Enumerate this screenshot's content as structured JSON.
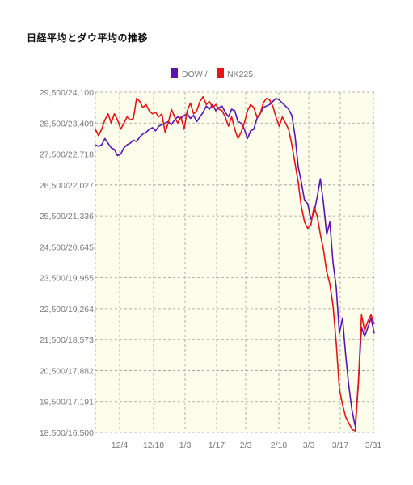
{
  "title": "日経平均とダウ平均の推移",
  "chart_data": {
    "type": "line",
    "legend": [
      "DOW /",
      "NK225"
    ],
    "legend_position": "top-center",
    "grid": true,
    "colors": {
      "DOW": "#5a14b4",
      "NK225": "#e81414",
      "plot_bg": "#fdfdeb",
      "grid": "#9a9a9a"
    },
    "ylim": [
      18500,
      29500
    ],
    "y_ticks": [
      "29,500/24,100",
      "28,500/23,409",
      "27,500/22,718",
      "26,500/22,027",
      "25,500/21,336",
      "24,500/20,645",
      "23,500/19,955",
      "22,500/19,264",
      "21,500/18,573",
      "20,500/17,882",
      "19,500/17,191",
      "18,500/16,500"
    ],
    "x_ticks": [
      "12/4",
      "12/18",
      "1/3",
      "1/17",
      "2/3",
      "2/18",
      "3/3",
      "3/17",
      "3/31"
    ],
    "series": [
      {
        "name": "DOW",
        "values": [
          27800,
          27750,
          27800,
          28000,
          27850,
          27700,
          27650,
          27450,
          27500,
          27700,
          27800,
          27850,
          27950,
          27900,
          28050,
          28150,
          28200,
          28300,
          28350,
          28250,
          28400,
          28450,
          28500,
          28550,
          28450,
          28600,
          28700,
          28650,
          28750,
          28800,
          28650,
          28750,
          28550,
          28700,
          28850,
          29050,
          28950,
          29100,
          28900,
          29000,
          29050,
          28850,
          28700,
          28950,
          28900,
          28550,
          28500,
          28300,
          28000,
          28250,
          28300,
          28650,
          28800,
          29000,
          29050,
          29100,
          29200,
          29300,
          29250,
          29150,
          29050,
          28950,
          28750,
          28100,
          27100,
          26600,
          26000,
          25900,
          25400,
          25600,
          26100,
          26700,
          25900,
          24900,
          25300,
          24000,
          23200,
          21700,
          22200,
          21000,
          20000,
          19200,
          18700,
          20100,
          21900,
          21600,
          21900,
          22200,
          21700
        ]
      },
      {
        "name": "NK225",
        "values": [
          28300,
          28100,
          28300,
          28600,
          28800,
          28500,
          28800,
          28600,
          28300,
          28500,
          28700,
          28600,
          28650,
          29300,
          29200,
          29000,
          29100,
          28900,
          28800,
          28850,
          28700,
          28800,
          28200,
          28500,
          28950,
          28700,
          28500,
          28700,
          28300,
          28900,
          29150,
          28800,
          28900,
          29200,
          29350,
          29100,
          29200,
          29000,
          29100,
          28950,
          28900,
          28700,
          28400,
          28700,
          28300,
          28000,
          28200,
          28500,
          28900,
          29100,
          29000,
          28700,
          28800,
          29150,
          29300,
          29250,
          29050,
          28700,
          28400,
          28700,
          28500,
          28300,
          27800,
          27200,
          26600,
          25800,
          25300,
          25100,
          25200,
          25800,
          25500,
          24900,
          24400,
          23700,
          23300,
          22600,
          21400,
          19900,
          19400,
          19000,
          18800,
          18600,
          18550,
          20100,
          22300,
          21800,
          22100,
          22300,
          22000
        ]
      }
    ]
  }
}
